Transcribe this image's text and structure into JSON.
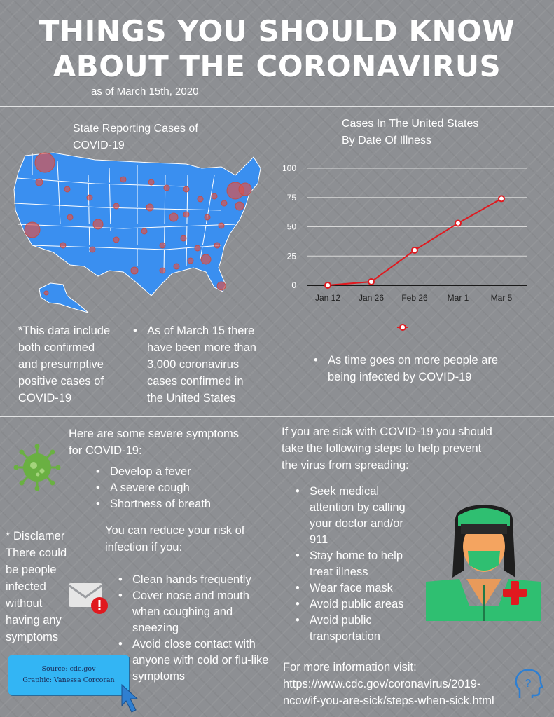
{
  "title": {
    "line1": "THINGS YOU SHOULD KNOW",
    "line2": "ABOUT THE CORONAVIRUS",
    "date": "as of March 15th, 2020"
  },
  "map_section": {
    "title_line1": "State Reporting Cases of",
    "title_line2": "COVID-19",
    "note": [
      "*This data include",
      "both confirmed",
      "and presumptive",
      "positive cases of",
      "COVID-19"
    ],
    "bullet": [
      "As of March 15 there",
      "have been more than",
      "3,000 coronavirus",
      "cases confirmed in",
      "the United States"
    ]
  },
  "chart_data": {
    "type": "line",
    "title": "Cases In The United States By Date Of Illness",
    "title_line1": "Cases In The United States",
    "title_line2": "By Date Of Illness",
    "categories": [
      "Jan 12",
      "Jan 26",
      "Feb 26",
      "Mar 1",
      "Mar 5"
    ],
    "values": [
      0,
      3,
      30,
      53,
      74
    ],
    "yticks": [
      "0",
      "25",
      "50",
      "75",
      "100"
    ],
    "ylim": [
      0,
      100
    ],
    "grid": true,
    "line_color": "#e0191f"
  },
  "chart_bullet": [
    "As time goes on more people are",
    "being infected by COVID-19"
  ],
  "symptoms": {
    "intro": [
      "Here are some severe symptoms",
      "for COVID-19:"
    ],
    "items": [
      "Develop a fever",
      "A severe cough",
      "Shortness of breath"
    ],
    "reduce_intro": [
      "You can reduce your risk of",
      "infection if you:"
    ],
    "reduce_items": [
      [
        "Clean hands frequently"
      ],
      [
        "Cover nose and mouth",
        "when coughing and",
        "sneezing"
      ],
      [
        "Avoid close contact with",
        "anyone with cold or flu-like",
        "symptoms"
      ]
    ]
  },
  "disclaimer": [
    "* Disclamer",
    "There could",
    "be people",
    "infected",
    "without",
    "having any",
    "symptoms"
  ],
  "source": {
    "line1": "Source: cdc.gov",
    "line2": "Graphic: Vanessa Corcoran"
  },
  "steps": {
    "intro": [
      "If you are sick with COVID-19 you should",
      "take the following steps to help prevent",
      "the virus from spreading:"
    ],
    "items": [
      [
        "Seek medical",
        "attention by calling",
        "your doctor and/or",
        "911"
      ],
      [
        "Stay home to help",
        "treat illness"
      ],
      [
        "Wear face mask"
      ],
      [
        "Avoid public areas"
      ],
      [
        "Avoid public",
        "transportation"
      ]
    ],
    "more_info": [
      "For more information visit:",
      "https://www.cdc.gov/coronavirus/2019-",
      "ncov/if-you-are-sick/steps-when-sick.html"
    ]
  },
  "colors": {
    "background": "#8d8f93",
    "map_fill": "#3a8ff0",
    "dot": "#c0504d",
    "virus": "#6ab042",
    "nurse_green": "#2fbf71",
    "cross": "#e0191f",
    "source_box": "#33b5f4"
  },
  "icons": [
    "virus-icon",
    "envelope-alert-icon",
    "nurse-icon",
    "cursor-arrow-icon",
    "head-question-icon"
  ]
}
